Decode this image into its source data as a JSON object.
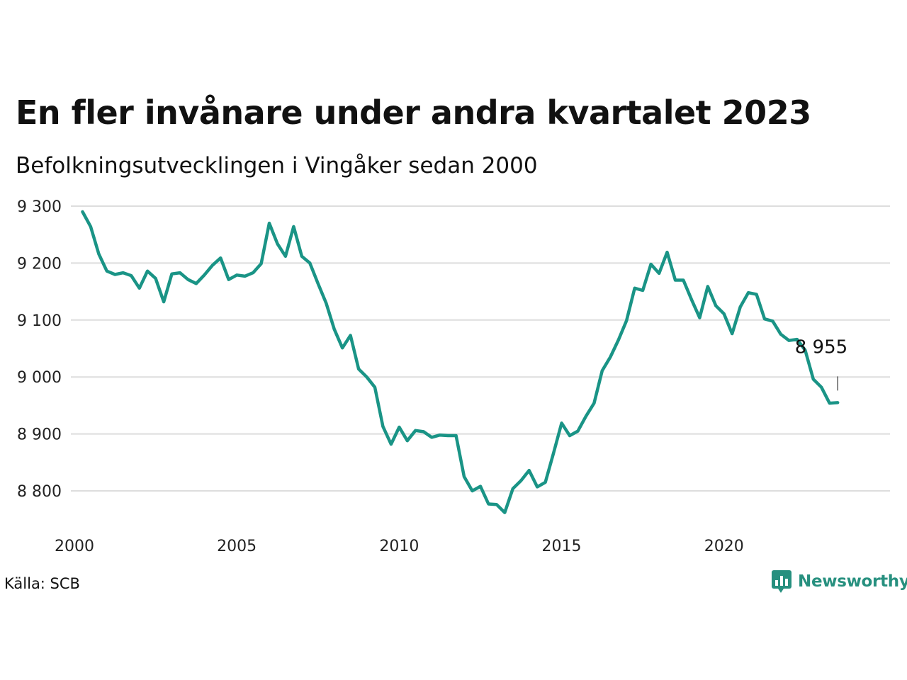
{
  "header": {
    "title": "En fler invånare under andra kvartalet 2023",
    "subtitle": "Befolkningsutvecklingen i Vingåker sedan 2000"
  },
  "footer": {
    "source": "Källa: SCB",
    "brand": "Newsworthy",
    "brand_icon": "newsworthy-logo-icon"
  },
  "colors": {
    "line": "#1a9486",
    "grid": "#dddddd",
    "brand": "#27907f"
  },
  "chart_data": {
    "type": "line",
    "title": "En fler invånare under andra kvartalet 2023",
    "subtitle": "Befolkningsutvecklingen i Vingåker sedan 2000",
    "xlabel": "",
    "ylabel": "",
    "xlim": [
      2000,
      2024.5
    ],
    "ylim": [
      8750,
      9310
    ],
    "x_ticks": [
      2000,
      2005,
      2010,
      2015,
      2020
    ],
    "x_tick_labels": [
      "2000",
      "2005",
      "2010",
      "2015",
      "2020"
    ],
    "y_ticks": [
      8800,
      8900,
      9000,
      9100,
      9200,
      9300
    ],
    "y_tick_labels": [
      "8 800",
      "8 900",
      "9 000",
      "9 100",
      "9 200",
      "9 300"
    ],
    "grid": true,
    "end_label": "8 955",
    "series": [
      {
        "x": [
          2000.25,
          2000.5,
          2000.75,
          2001.0,
          2001.25,
          2001.5,
          2001.75,
          2002.0,
          2002.25,
          2002.5,
          2002.75,
          2003.0,
          2003.25,
          2003.5,
          2003.75,
          2004.0,
          2004.25,
          2004.5,
          2004.75,
          2005.0,
          2005.25,
          2005.5,
          2005.75,
          2006.0,
          2006.25,
          2006.5,
          2006.75,
          2007.0,
          2007.25,
          2007.5,
          2007.75,
          2008.0,
          2008.25,
          2008.5,
          2008.75,
          2009.0,
          2009.25,
          2009.5,
          2009.75,
          2010.0,
          2010.25,
          2010.5,
          2010.75,
          2011.0,
          2011.25,
          2011.5,
          2011.75,
          2012.0,
          2012.25,
          2012.5,
          2012.75,
          2013.0,
          2013.25,
          2013.5,
          2013.75,
          2014.0,
          2014.25,
          2014.5,
          2014.75,
          2015.0,
          2015.25,
          2015.5,
          2015.75,
          2016.0,
          2016.25,
          2016.5,
          2016.75,
          2017.0,
          2017.25,
          2017.5,
          2017.75,
          2018.0,
          2018.25,
          2018.5,
          2018.75,
          2019.0,
          2019.25,
          2019.5,
          2019.75,
          2020.0,
          2020.25,
          2020.5,
          2020.75,
          2021.0,
          2021.25,
          2021.5,
          2021.75,
          2022.0,
          2022.25,
          2022.5,
          2022.75,
          2023.0,
          2023.25,
          2023.5
        ],
        "values": [
          9290,
          9264,
          9216,
          9186,
          9180,
          9183,
          9178,
          9156,
          9186,
          9173,
          9132,
          9181,
          9183,
          9171,
          9164,
          9179,
          9196,
          9209,
          9171,
          9179,
          9177,
          9183,
          9199,
          9270,
          9234,
          9212,
          9264,
          9212,
          9200,
          9164,
          9130,
          9084,
          9051,
          9073,
          9014,
          9000,
          8982,
          8913,
          8882,
          8912,
          8888,
          8906,
          8904,
          8894,
          8898,
          8897,
          8897,
          8825,
          8800,
          8808,
          8777,
          8776,
          8762,
          8804,
          8818,
          8836,
          8807,
          8815,
          8866,
          8919,
          8897,
          8905,
          8931,
          8954,
          9011,
          9035,
          9065,
          9099,
          9156,
          9152,
          9198,
          9182,
          9219,
          9170,
          9170,
          9136,
          9104,
          9159,
          9125,
          9111,
          9076,
          9123,
          9148,
          9145,
          9102,
          9098,
          9075,
          9064,
          9066,
          9047,
          8996,
          8982,
          8954,
          8955
        ]
      }
    ]
  }
}
